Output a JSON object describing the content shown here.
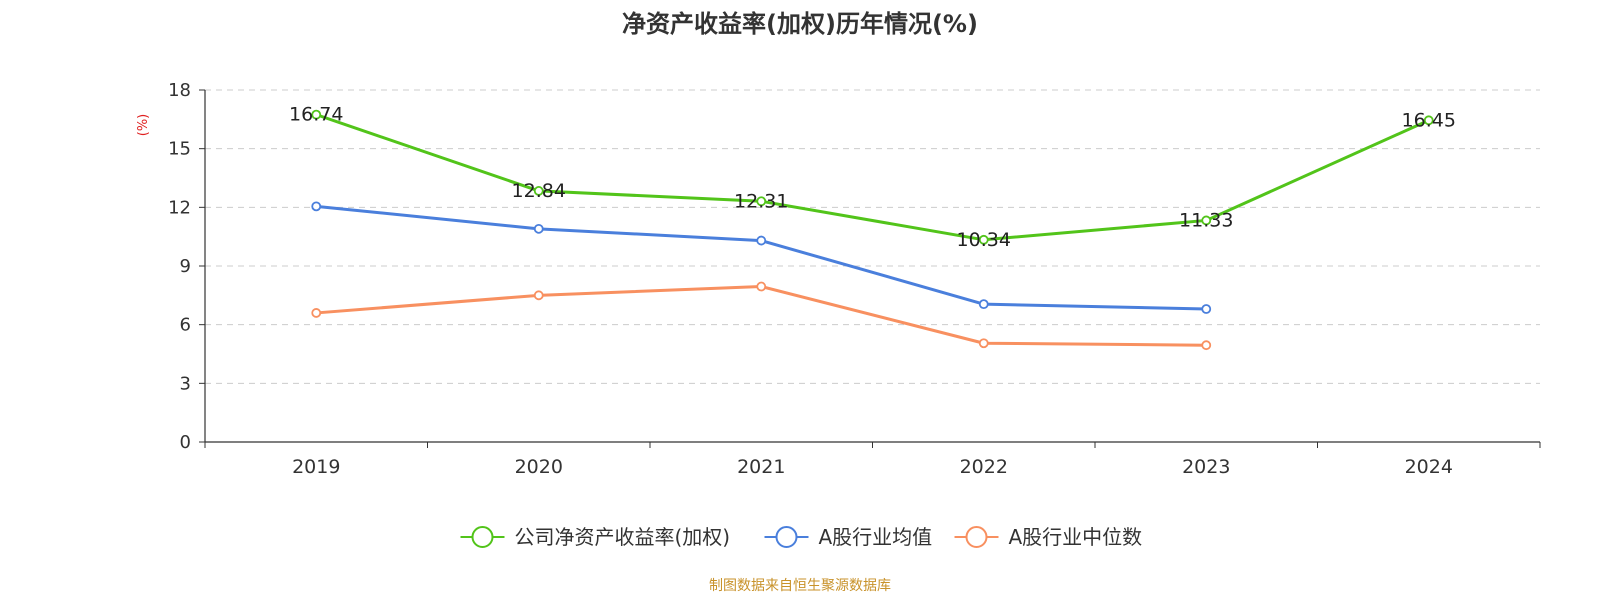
{
  "chart_data": {
    "type": "line",
    "title": "净资产收益率(加权)历年情况(%)",
    "ylabel": "(%)",
    "ylim": [
      0,
      18
    ],
    "yticks": [
      0,
      3,
      6,
      9,
      12,
      15,
      18
    ],
    "categories": [
      "2019",
      "2020",
      "2021",
      "2022",
      "2023",
      "2024"
    ],
    "grid": true,
    "legend_position": "bottom",
    "series": [
      {
        "name": "公司净资产收益率(加权)",
        "color": "#52c41a",
        "values": [
          16.74,
          12.84,
          12.31,
          10.34,
          11.33,
          16.45
        ],
        "labels": [
          "16.74",
          "12.84",
          "12.31",
          "10.34",
          "11.33",
          "16.45"
        ]
      },
      {
        "name": "A股行业均值",
        "color": "#4a7fdc",
        "values": [
          12.05,
          10.9,
          10.3,
          7.05,
          6.8,
          null
        ]
      },
      {
        "name": "A股行业中位数",
        "color": "#f89060",
        "values": [
          6.6,
          7.5,
          7.95,
          5.05,
          4.95,
          null
        ]
      }
    ]
  },
  "source_text": "制图数据来自恒生聚源数据库",
  "colors": {
    "axis": "#333333",
    "grid": "#cccccc",
    "ylabel": "#e02020",
    "source": "#c8922a"
  }
}
